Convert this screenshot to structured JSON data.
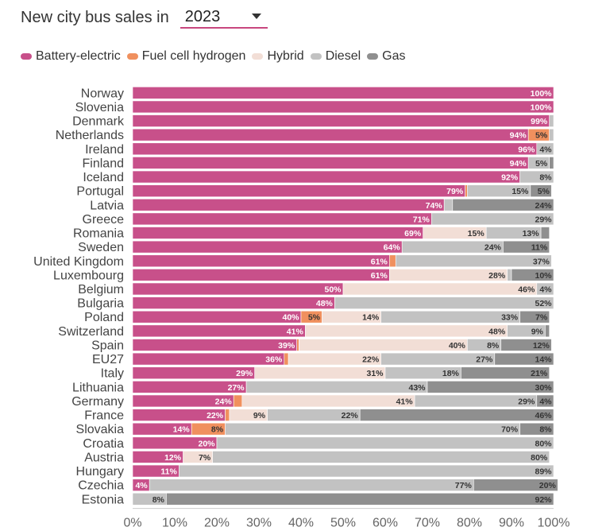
{
  "header": {
    "title": "New city bus sales in",
    "year": "2023"
  },
  "legend": [
    {
      "label": "Battery-electric",
      "color": "#c8508a"
    },
    {
      "label": "Fuel cell hydrogen",
      "color": "#f0905e"
    },
    {
      "label": "Hybrid",
      "color": "#f2ded6"
    },
    {
      "label": "Diesel",
      "color": "#c2c2c2"
    },
    {
      "label": "Gas",
      "color": "#8f8f8f"
    }
  ],
  "chart_data": {
    "type": "bar",
    "orientation": "horizontal",
    "stacked": true,
    "xlim": [
      0,
      100
    ],
    "xticks": [
      "0%",
      "10%",
      "20%",
      "30%",
      "40%",
      "50%",
      "60%",
      "70%",
      "80%",
      "90%",
      "100%"
    ],
    "categories": [
      "Norway",
      "Slovenia",
      "Denmark",
      "Netherlands",
      "Ireland",
      "Finland",
      "Iceland",
      "Portugal",
      "Latvia",
      "Greece",
      "Romania",
      "Sweden",
      "United Kingdom",
      "Luxembourg",
      "Belgium",
      "Bulgaria",
      "Poland",
      "Switzerland",
      "Spain",
      "EU27",
      "Italy",
      "Lithuania",
      "Germany",
      "France",
      "Slovakia",
      "Croatia",
      "Austria",
      "Hungary",
      "Czechia",
      "Estonia"
    ],
    "series": [
      {
        "name": "Battery-electric",
        "color": "#c8508a",
        "values": [
          100,
          100,
          99,
          94,
          96,
          94,
          92,
          79,
          74,
          71,
          69,
          64,
          61,
          61,
          50,
          48,
          40,
          41,
          39,
          36,
          29,
          27,
          24,
          22,
          14,
          20,
          12,
          11,
          4,
          0
        ]
      },
      {
        "name": "Fuel cell hydrogen",
        "color": "#f0905e",
        "values": [
          0,
          0,
          0,
          5,
          0,
          0,
          0,
          0.5,
          0,
          0,
          0,
          0,
          1.5,
          0,
          0,
          0,
          5,
          0,
          0.5,
          1,
          0,
          0,
          2,
          1,
          8,
          0,
          0,
          0,
          0,
          0
        ]
      },
      {
        "name": "Hybrid",
        "color": "#f2ded6",
        "values": [
          0,
          0,
          0,
          0,
          0,
          0,
          0,
          0,
          0,
          0,
          15,
          0,
          0,
          28,
          46,
          0,
          14,
          48,
          40,
          22,
          31,
          0,
          41,
          9,
          0,
          0,
          7,
          0,
          0,
          0
        ]
      },
      {
        "name": "Diesel",
        "color": "#c2c2c2",
        "values": [
          0,
          0,
          1,
          1,
          4,
          5,
          8,
          15,
          2,
          29,
          13,
          24,
          37,
          1,
          4,
          52,
          33,
          9,
          8,
          27,
          18,
          43,
          29,
          22,
          70,
          80,
          80,
          89,
          77,
          8
        ]
      },
      {
        "name": "Gas",
        "color": "#8f8f8f",
        "values": [
          0,
          0,
          0,
          0,
          0,
          1,
          0,
          5,
          24,
          0,
          2,
          11,
          0,
          10,
          0,
          0,
          7,
          1,
          12,
          14,
          21,
          30,
          4,
          46,
          8,
          0,
          0,
          0,
          20,
          92
        ]
      }
    ],
    "data_labels": [
      [
        "100%",
        "",
        "",
        "",
        ""
      ],
      [
        "100%",
        "",
        "",
        "",
        ""
      ],
      [
        "99%",
        "",
        "",
        "",
        ""
      ],
      [
        "94%",
        "5%",
        "",
        "",
        ""
      ],
      [
        "96%",
        "",
        "",
        "4%",
        ""
      ],
      [
        "94%",
        "",
        "",
        "5%",
        ""
      ],
      [
        "92%",
        "",
        "",
        "8%",
        ""
      ],
      [
        "79%",
        "",
        "",
        "15%",
        "5%"
      ],
      [
        "74%",
        "",
        "",
        "",
        "24%"
      ],
      [
        "71%",
        "",
        "",
        "29%",
        ""
      ],
      [
        "69%",
        "",
        "15%",
        "13%",
        ""
      ],
      [
        "64%",
        "",
        "",
        "24%",
        "11%"
      ],
      [
        "61%",
        "",
        "",
        "37%",
        ""
      ],
      [
        "61%",
        "",
        "28%",
        "",
        "10%"
      ],
      [
        "50%",
        "",
        "46%",
        "4%",
        ""
      ],
      [
        "48%",
        "",
        "",
        "52%",
        ""
      ],
      [
        "40%",
        "5%",
        "14%",
        "33%",
        "7%"
      ],
      [
        "41%",
        "",
        "48%",
        "9%",
        ""
      ],
      [
        "39%",
        "",
        "40%",
        "8%",
        "12%"
      ],
      [
        "36%",
        "",
        "22%",
        "27%",
        "14%"
      ],
      [
        "29%",
        "",
        "31%",
        "18%",
        "21%"
      ],
      [
        "27%",
        "",
        "",
        "43%",
        "30%"
      ],
      [
        "24%",
        "",
        "41%",
        "29%",
        "4%"
      ],
      [
        "22%",
        "",
        "9%",
        "22%",
        "46%"
      ],
      [
        "14%",
        "8%",
        "",
        "70%",
        "8%"
      ],
      [
        "20%",
        "",
        "",
        "80%",
        ""
      ],
      [
        "12%",
        "",
        "7%",
        "80%",
        ""
      ],
      [
        "11%",
        "",
        "",
        "89%",
        ""
      ],
      [
        "4%",
        "",
        "",
        "77%",
        "20%"
      ],
      [
        "",
        "",
        "",
        "8%",
        "92%"
      ]
    ]
  }
}
